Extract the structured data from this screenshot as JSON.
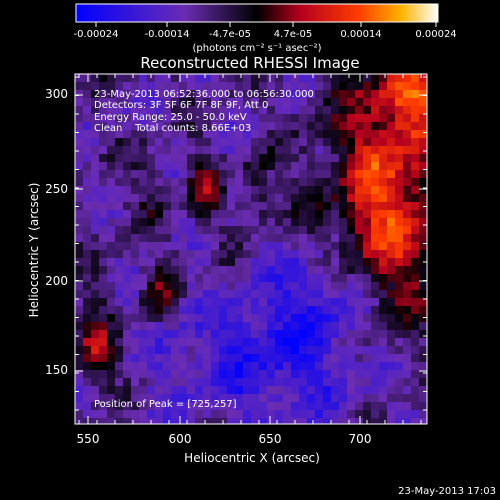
{
  "colorbar": {
    "ticks": [
      "-0.00024",
      "-0.00014",
      "-4.7e-05",
      "4.7e-05",
      "0.00014",
      "0.00024"
    ],
    "units": "(photons cm⁻² s⁻¹ asec⁻²)",
    "colors": [
      "#0000ff",
      "#6a2cb3",
      "#000000",
      "#b4001e",
      "#ff3c00",
      "#ffb400",
      "#ffffff"
    ]
  },
  "plot": {
    "title": "Reconstructed RHESSI Image",
    "xlabel": "Heliocentric X (arcsec)",
    "ylabel": "Heliocentric Y (arcsec)",
    "xticks": [
      "550",
      "600",
      "650",
      "700"
    ],
    "yticks": [
      "300",
      "250",
      "200",
      "150"
    ]
  },
  "annotations": {
    "time_range": "23-May-2013 06:52:36.000 to 06:56:30.000",
    "detectors": "Detectors: 3F 5F 6F 7F 8F 9F, Att 0",
    "energy": "Energy Range: 25.0 - 50.0 keV",
    "clean": "Clean    Total counts: 8.66E+03",
    "peak": "Position of Peak = [725,257]"
  },
  "footer": {
    "timestamp": "23-May-2013 17:03"
  }
}
